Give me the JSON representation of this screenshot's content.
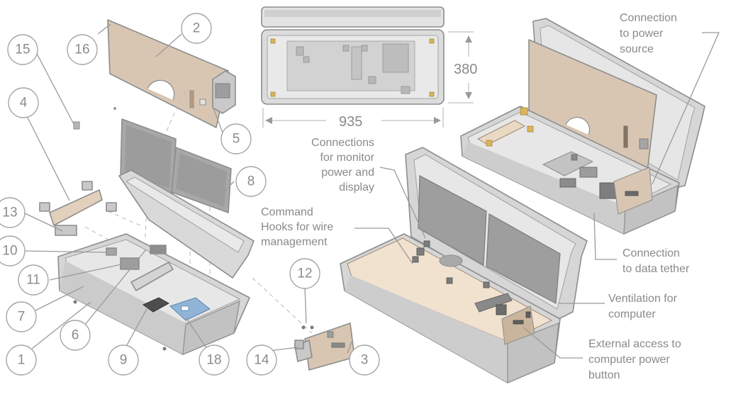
{
  "part_numbers": [
    "1",
    "2",
    "3",
    "4",
    "5",
    "6",
    "7",
    "8",
    "9",
    "10",
    "11",
    "12",
    "13",
    "14",
    "15",
    "16",
    "18"
  ],
  "dimensions": {
    "height": "380",
    "width": "935"
  },
  "annotations": {
    "monitor_power": [
      "Connections",
      "for monitor",
      "power and",
      "display"
    ],
    "command_hooks": [
      "Command",
      "Hooks for wire",
      "management"
    ],
    "power_source": [
      "Connection",
      "to power",
      "source"
    ],
    "data_tether": [
      "Connection",
      "to data tether"
    ],
    "ventilation": [
      "Ventilation for",
      "computer"
    ],
    "power_button": [
      "External access to",
      "computer power",
      "button"
    ]
  },
  "colors": {
    "case_gray": "#d6d6d6",
    "panel_tan": "#d8c6b3",
    "floor_beige": "#f1e2cf",
    "screen_gray": "#9c9c9c",
    "board_blue": "#8fb4d6",
    "stroke": "#8d8d8d"
  }
}
